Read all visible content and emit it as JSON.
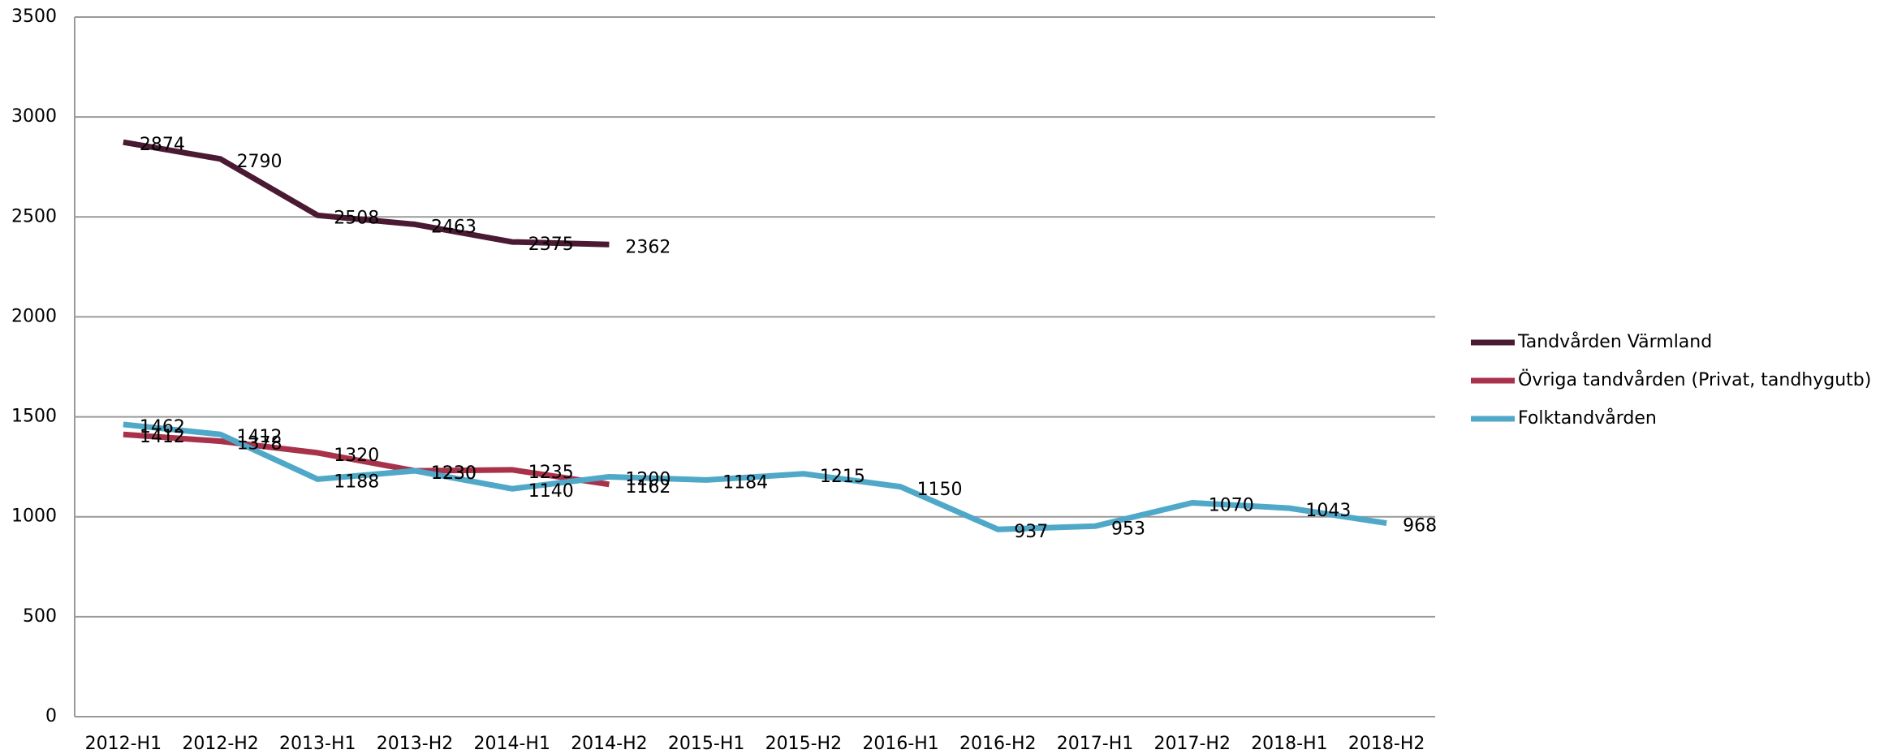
{
  "chart_data": {
    "type": "line",
    "categories": [
      "2012-H1",
      "2012-H2",
      "2013-H1",
      "2013-H2",
      "2014-H1",
      "2014-H2",
      "2015-H1",
      "2015-H2",
      "2016-H1",
      "2016-H2",
      "2017-H1",
      "2017-H2",
      "2018-H1",
      "2018-H2"
    ],
    "series": [
      {
        "name": "Tandvården Värmland",
        "color": "#4a1a33",
        "values": [
          2874,
          2790,
          2508,
          2463,
          2375,
          2362,
          null,
          null,
          null,
          null,
          null,
          null,
          null,
          null
        ]
      },
      {
        "name": "Övriga tandvården (Privat, tandhygutb)",
        "color": "#a8324a",
        "values": [
          1412,
          1378,
          1320,
          1230,
          1235,
          1162,
          null,
          null,
          null,
          null,
          null,
          null,
          null,
          null
        ]
      },
      {
        "name": "Folktandvården",
        "color": "#4fa8c8",
        "values": [
          1462,
          1412,
          1188,
          1230,
          1140,
          1200,
          1184,
          1215,
          1150,
          937,
          953,
          1070,
          1043,
          968
        ]
      }
    ],
    "ylim": [
      0,
      3500
    ],
    "yticks": [
      0,
      500,
      1000,
      1500,
      2000,
      2500,
      3000,
      3500
    ],
    "grid": true,
    "legend": "right"
  }
}
